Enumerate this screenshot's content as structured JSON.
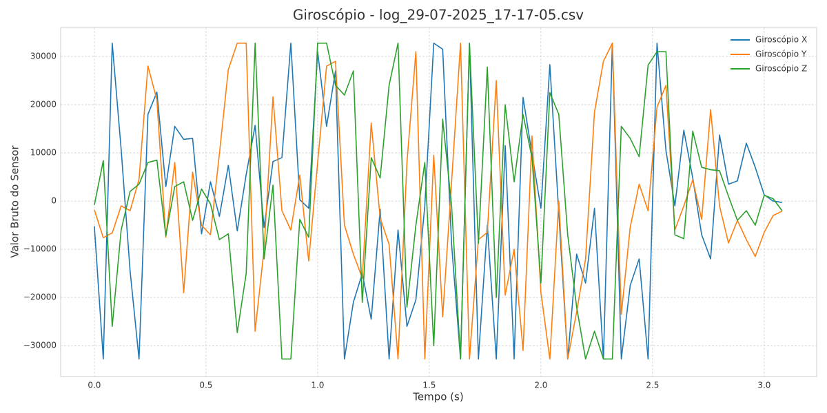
{
  "chart_data": {
    "type": "line",
    "title": "Giroscópio - log_29-07-2025_17-17-05.csv",
    "x_label": "Tempo (s)",
    "y_label": "Valor Bruto do Sensor",
    "x": [
      0,
      0.04,
      0.08,
      0.12,
      0.16,
      0.2,
      0.24,
      0.28,
      0.32,
      0.36,
      0.4,
      0.44,
      0.48,
      0.52,
      0.56,
      0.6,
      0.64,
      0.68,
      0.72,
      0.76,
      0.8,
      0.84,
      0.88,
      0.92,
      0.96,
      1.0,
      1.04,
      1.08,
      1.12,
      1.16,
      1.2,
      1.24,
      1.28,
      1.32,
      1.36,
      1.4,
      1.44,
      1.48,
      1.52,
      1.56,
      1.6,
      1.64,
      1.68,
      1.72,
      1.76,
      1.8,
      1.84,
      1.88,
      1.92,
      1.96,
      2.0,
      2.04,
      2.08,
      2.12,
      2.16,
      2.2,
      2.24,
      2.28,
      2.32,
      2.36,
      2.4,
      2.44,
      2.48,
      2.52,
      2.56,
      2.6,
      2.64,
      2.68,
      2.72,
      2.76,
      2.8,
      2.84,
      2.88,
      2.92,
      2.96,
      3.0,
      3.04,
      3.08
    ],
    "series": [
      {
        "name": "Giroscópio X",
        "color": "#1f77b4",
        "values": [
          -5200,
          -32768,
          32767,
          10700,
          -14500,
          -32768,
          18000,
          22600,
          3000,
          15500,
          12800,
          13000,
          -6800,
          4000,
          -3200,
          7400,
          -6200,
          5500,
          15700,
          -5500,
          8200,
          9000,
          32767,
          300,
          -1500,
          31000,
          15500,
          27000,
          -32768,
          -21000,
          -15000,
          -24500,
          -1700,
          -32768,
          -6000,
          -26000,
          -20500,
          -1000,
          32767,
          31500,
          -9000,
          -32768,
          32767,
          -32768,
          -5000,
          -32768,
          11500,
          -32768,
          21500,
          9800,
          -1500,
          28300,
          -2500,
          -32768,
          -11000,
          -17000,
          -1500,
          -32768,
          32767,
          -32768,
          -17500,
          -12000,
          -32768,
          32767,
          10500,
          -1000,
          14700,
          4800,
          -7000,
          -12000,
          13700,
          3500,
          4200,
          12000,
          7000,
          1300,
          0,
          -300
        ]
      },
      {
        "name": "Giroscópio Y",
        "color": "#ff7f0e",
        "values": [
          -1800,
          -7600,
          -6600,
          -1000,
          -2000,
          4500,
          28000,
          21000,
          -7500,
          8000,
          -19000,
          6000,
          -5000,
          -7000,
          9800,
          27300,
          32767,
          32767,
          -27000,
          -10000,
          21600,
          -2000,
          -6000,
          5400,
          -12400,
          8000,
          28000,
          29000,
          -5000,
          -11000,
          -16000,
          16200,
          -3500,
          -9000,
          -32768,
          8000,
          31000,
          -32768,
          9500,
          -24000,
          4000,
          32767,
          -32768,
          -8000,
          -6500,
          25000,
          -19500,
          -10000,
          -31000,
          13500,
          -19000,
          -32768,
          0,
          -32768,
          -23000,
          -12000,
          18500,
          29000,
          32767,
          -23500,
          -5400,
          3500,
          -2000,
          19500,
          24000,
          -6000,
          -1000,
          4400,
          -3800,
          19000,
          -1000,
          -8700,
          -4000,
          -8000,
          -11500,
          -6500,
          -3000,
          -2100
        ]
      },
      {
        "name": "Giroscópio Z",
        "color": "#2ca02c",
        "values": [
          -800,
          8400,
          -26000,
          -6000,
          2000,
          3500,
          8000,
          8500,
          -7200,
          3000,
          4000,
          -4000,
          2500,
          -600,
          -8000,
          -6800,
          -27300,
          -15000,
          32767,
          -12000,
          3300,
          -32768,
          -32768,
          -3800,
          -7500,
          32767,
          32767,
          24000,
          22000,
          27000,
          -21000,
          9000,
          4800,
          24000,
          32767,
          -22000,
          -5000,
          8000,
          -30000,
          17000,
          -1000,
          -32768,
          32767,
          -8800,
          27800,
          -20000,
          20000,
          4000,
          18000,
          9000,
          -17000,
          22500,
          18000,
          -7000,
          -22000,
          -32768,
          -27000,
          -32768,
          -32768,
          15500,
          13000,
          9200,
          28200,
          31000,
          31000,
          -7000,
          -7800,
          14500,
          7000,
          6500,
          6300,
          1000,
          -4000,
          -2000,
          -5000,
          1200,
          500,
          -2000
        ]
      }
    ],
    "xlim": [
      -0.151,
      3.235
    ],
    "ylim": [
      -36400,
      36000
    ],
    "xticks": [
      {
        "value": 0,
        "label": "0.0"
      },
      0.5,
      {
        "value": 1,
        "label": "1.0"
      },
      1.5,
      {
        "value": 2,
        "label": "2.0"
      },
      2.5,
      {
        "value": 3,
        "label": "3.0"
      }
    ],
    "yticks": [
      {
        "value": -30000,
        "label": "−30000"
      },
      {
        "value": -20000,
        "label": "−20000"
      },
      {
        "value": -10000,
        "label": "−10000"
      },
      0,
      10000,
      20000,
      30000
    ],
    "grid": true,
    "legend": "upper right"
  }
}
